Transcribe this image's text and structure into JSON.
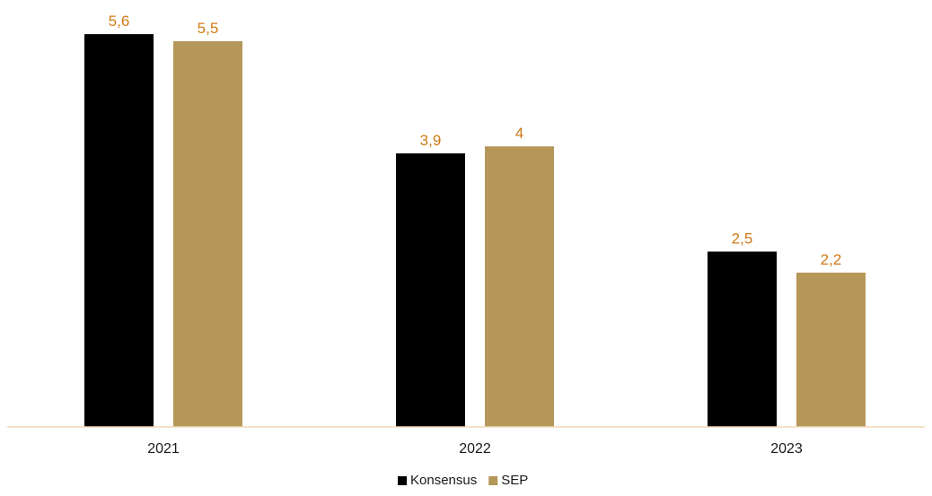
{
  "chart_data": {
    "type": "bar",
    "categories": [
      "2021",
      "2022",
      "2023"
    ],
    "series": [
      {
        "name": "Konsensus",
        "values": [
          5.6,
          3.9,
          2.5
        ],
        "labels": [
          "5,6",
          "3,9",
          "2,5"
        ],
        "color": "#000000"
      },
      {
        "name": "SEP",
        "values": [
          5.5,
          4.0,
          2.2
        ],
        "labels": [
          "5,5",
          "4",
          "2,2"
        ],
        "color": "#b5975a"
      }
    ],
    "title": "",
    "xlabel": "",
    "ylabel": "",
    "ylim": [
      0,
      6
    ],
    "grid": false,
    "legend": "bottom-center",
    "data_label_color": "#d07a14",
    "axis_color": "#f2d9b5"
  }
}
